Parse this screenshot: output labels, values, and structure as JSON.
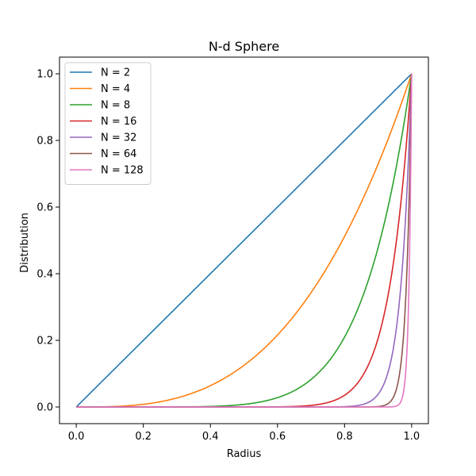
{
  "chart_data": {
    "type": "line",
    "title": "N-d Sphere",
    "xlabel": "Radius",
    "ylabel": "Distribution",
    "xlim": [
      -0.05,
      1.05
    ],
    "ylim": [
      -0.05,
      1.05
    ],
    "x_ticks": [
      0.0,
      0.2,
      0.4,
      0.6,
      0.8,
      1.0
    ],
    "y_ticks": [
      0.0,
      0.2,
      0.4,
      0.6,
      0.8,
      1.0
    ],
    "x_tick_labels": [
      "0.0",
      "0.2",
      "0.4",
      "0.6",
      "0.8",
      "1.0"
    ],
    "y_tick_labels": [
      "0.0",
      "0.2",
      "0.4",
      "0.6",
      "0.8",
      "1.0"
    ],
    "x_range": [
      0,
      1
    ],
    "grid": false,
    "legend_position": "upper-left",
    "series": [
      {
        "name": "N = 2",
        "exponent": 1,
        "color": "#1f77b4"
      },
      {
        "name": "N = 4",
        "exponent": 3,
        "color": "#ff7f0e"
      },
      {
        "name": "N = 8",
        "exponent": 7,
        "color": "#2ca02c"
      },
      {
        "name": "N = 16",
        "exponent": 15,
        "color": "#d62728"
      },
      {
        "name": "N = 32",
        "exponent": 31,
        "color": "#9467bd"
      },
      {
        "name": "N = 64",
        "exponent": 63,
        "color": "#8c564b"
      },
      {
        "name": "N = 128",
        "exponent": 127,
        "color": "#e377c2"
      }
    ]
  }
}
